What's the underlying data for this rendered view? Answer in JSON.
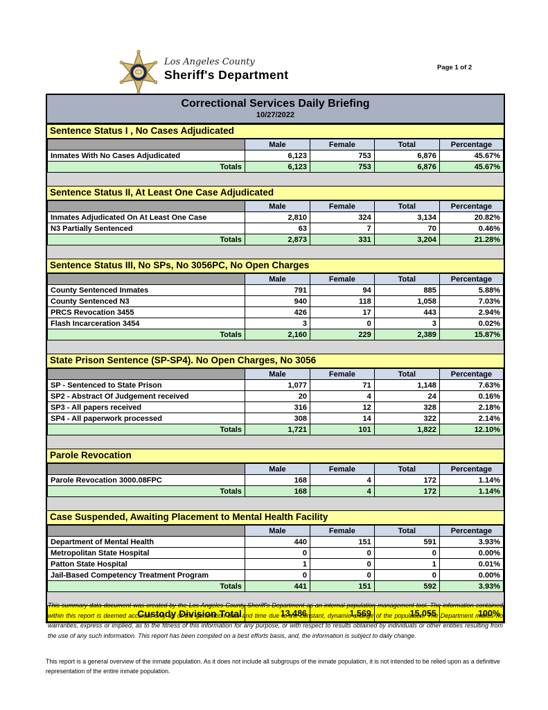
{
  "page": {
    "number_label": "Page 1 of 2"
  },
  "letterhead": {
    "logo_icon": "lasd-star-badge-icon",
    "agency_line1": "Los Angeles County",
    "agency_line2": "Sheriff's Department"
  },
  "briefing": {
    "title": "Correctional Services Daily Briefing",
    "date": "10/27/2022"
  },
  "columns": [
    "Male",
    "Female",
    "Total",
    "Percentage"
  ],
  "sections": [
    {
      "title": "Sentence Status I , No Cases Adjudicated",
      "rows": [
        {
          "label": "Inmates With No Cases Adjudicated",
          "male": "6,123",
          "female": "753",
          "total": "6,876",
          "percentage": "45.67%"
        }
      ],
      "totals": {
        "label": "Totals",
        "male": "6,123",
        "female": "753",
        "total": "6,876",
        "percentage": "45.67%"
      }
    },
    {
      "title": "Sentence Status II, At Least One Case Adjudicated",
      "rows": [
        {
          "label": "Inmates Adjudicated On At Least One Case",
          "male": "2,810",
          "female": "324",
          "total": "3,134",
          "percentage": "20.82%"
        },
        {
          "label": "N3 Partially Sentenced",
          "male": "63",
          "female": "7",
          "total": "70",
          "percentage": "0.46%"
        }
      ],
      "totals": {
        "label": "Totals",
        "male": "2,873",
        "female": "331",
        "total": "3,204",
        "percentage": "21.28%"
      }
    },
    {
      "title": "Sentence Status III, No SPs, No 3056PC, No Open Charges",
      "rows": [
        {
          "label": "County Sentenced Inmates",
          "male": "791",
          "female": "94",
          "total": "885",
          "percentage": "5.88%"
        },
        {
          "label": "County Sentenced N3",
          "male": "940",
          "female": "118",
          "total": "1,058",
          "percentage": "7.03%"
        },
        {
          "label": "PRCS Revocation 3455",
          "male": "426",
          "female": "17",
          "total": "443",
          "percentage": "2.94%"
        },
        {
          "label": "Flash Incarceration 3454",
          "male": "3",
          "female": "0",
          "total": "3",
          "percentage": "0.02%"
        }
      ],
      "totals": {
        "label": "Totals",
        "male": "2,160",
        "female": "229",
        "total": "2,389",
        "percentage": "15.87%"
      }
    },
    {
      "title": "State Prison Sentence (SP-SP4). No Open Charges, No 3056",
      "rows": [
        {
          "label": "SP - Sentenced to State Prison",
          "male": "1,077",
          "female": "71",
          "total": "1,148",
          "percentage": "7.63%"
        },
        {
          "label": "SP2 - Abstract Of Judgement received",
          "male": "20",
          "female": "4",
          "total": "24",
          "percentage": "0.16%"
        },
        {
          "label": "SP3 - All papers received",
          "male": "316",
          "female": "12",
          "total": "328",
          "percentage": "2.18%"
        },
        {
          "label": "SP4 - All paperwork processed",
          "male": "308",
          "female": "14",
          "total": "322",
          "percentage": "2.14%"
        }
      ],
      "totals": {
        "label": "Totals",
        "male": "1,721",
        "female": "101",
        "total": "1,822",
        "percentage": "12.10%"
      }
    },
    {
      "title": "Parole Revocation",
      "rows": [
        {
          "label": "Parole Revocation 3000.08FPC",
          "male": "168",
          "female": "4",
          "total": "172",
          "percentage": "1.14%"
        }
      ],
      "totals": {
        "label": "Totals",
        "male": "168",
        "female": "4",
        "total": "172",
        "percentage": "1.14%"
      }
    },
    {
      "title": "Case Suspended, Awaiting Placement to Mental Health Facility",
      "rows": [
        {
          "label": "Department of Mental Health",
          "male": "440",
          "female": "151",
          "total": "591",
          "percentage": "3.93%"
        },
        {
          "label": "Metropolitan State Hospital",
          "male": "0",
          "female": "0",
          "total": "0",
          "percentage": "0.00%"
        },
        {
          "label": "Patton State Hospital",
          "male": "1",
          "female": "0",
          "total": "1",
          "percentage": "0.01%"
        },
        {
          "label": "Jail-Based Competency Treatment Program",
          "male": "0",
          "female": "0",
          "total": "0",
          "percentage": "0.00%"
        }
      ],
      "totals": {
        "label": "Totals",
        "male": "441",
        "female": "151",
        "total": "592",
        "percentage": "3.93%"
      }
    }
  ],
  "custody_total": {
    "label": "Custody Division Total",
    "male": "13,486",
    "female": "1,569",
    "total": "15,055",
    "percentage": "100%"
  },
  "footnotes": {
    "disclaimer": "This summary data document was created by the Los Angeles County Sheriff's Department as an internal population management tool.  The information contained within this report is deemed accurate only as of the generation date and time due to the constant, dynamic change of the population.  The Department makes no warranties, express or implied, as to the fitness of this information for any purpose, or with respect to results obtained by individuals or other entities resulting from the use of any such information.  This report has been compiled on a best efforts basis, and, the information is subject to daily change.",
    "overview_note": "This report is a general overview of the inmate population.  As it does not include all subgroups of the inmate population, it is not intended to be relied upon as a definitive representation of the entire inmate population."
  },
  "colors": {
    "title_band": "#a8b1c1",
    "section_header_yellow": "#ffff9e",
    "column_header_blue": "#cfd9e8",
    "totals_green": "#cdf3cd",
    "custody_total_yellow": "#ffff00",
    "spacer_gray": "#d6d6d6",
    "corner_gray": "#a3a3a3",
    "badge_gold": "#d8bd72",
    "badge_navy": "#13265a"
  }
}
